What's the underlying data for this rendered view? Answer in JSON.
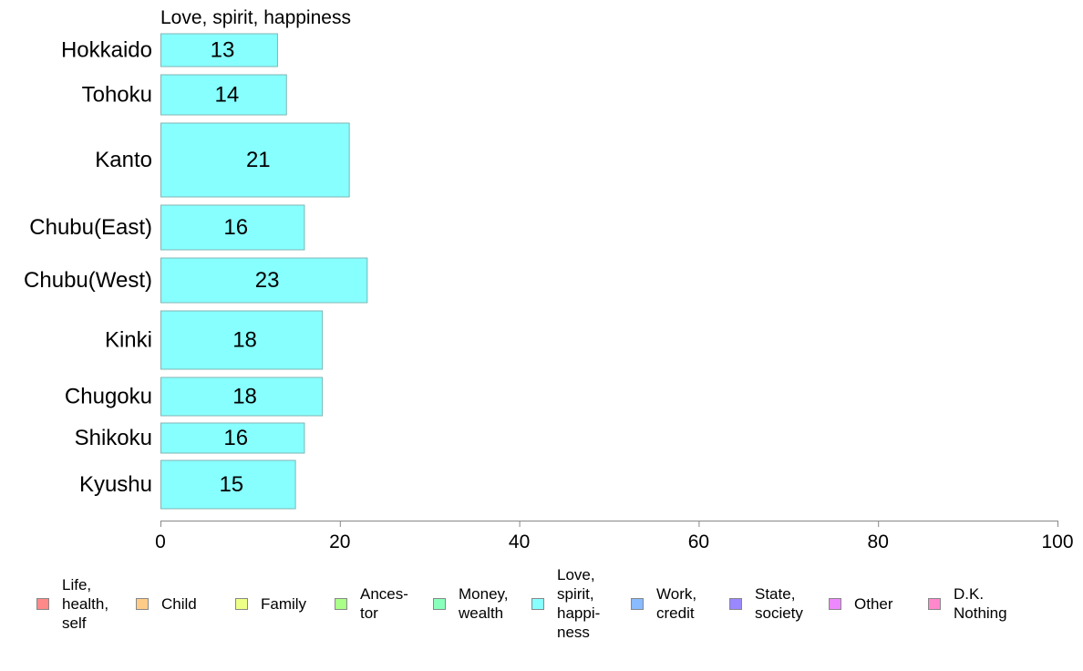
{
  "chart_data": {
    "type": "bar",
    "orientation": "horizontal",
    "title": "Love, spirit, happiness",
    "categories": [
      "Hokkaido",
      "Tohoku",
      "Kanto",
      "Chubu(East)",
      "Chubu(West)",
      "Kinki",
      "Chugoku",
      "Shikoku",
      "Kyushu"
    ],
    "values": [
      13,
      14,
      21,
      16,
      23,
      18,
      18,
      16,
      15
    ],
    "value_labels": [
      "13",
      "14",
      "21",
      "16",
      "23",
      "18",
      "18",
      "16",
      "15"
    ],
    "bar_color": "#88ffff",
    "xlim": [
      0,
      100
    ],
    "xticks": [
      0,
      20,
      40,
      60,
      80,
      100
    ],
    "xtick_labels": [
      "0",
      "20",
      "40",
      "60",
      "80",
      "100"
    ],
    "xlabel": "",
    "ylabel": "",
    "grid": false,
    "legend_placement": "bottom",
    "legend": [
      {
        "label": "Life,\nhealth,\nself",
        "color": "#ff8888"
      },
      {
        "label": "Child",
        "color": "#ffcc88"
      },
      {
        "label": "Family",
        "color": "#eeff88"
      },
      {
        "label": "Ances-\ntor",
        "color": "#aaff88"
      },
      {
        "label": "Money,\nwealth",
        "color": "#88ffbb"
      },
      {
        "label": "Love,\nspirit,\nhappi-\nness",
        "color": "#88ffff"
      },
      {
        "label": "Work,\ncredit",
        "color": "#88bbff"
      },
      {
        "label": "State,\nsociety",
        "color": "#9988ff"
      },
      {
        "label": "Other",
        "color": "#ee88ff"
      },
      {
        "label": "D.K.\nNothing",
        "color": "#ff88cc"
      }
    ]
  }
}
